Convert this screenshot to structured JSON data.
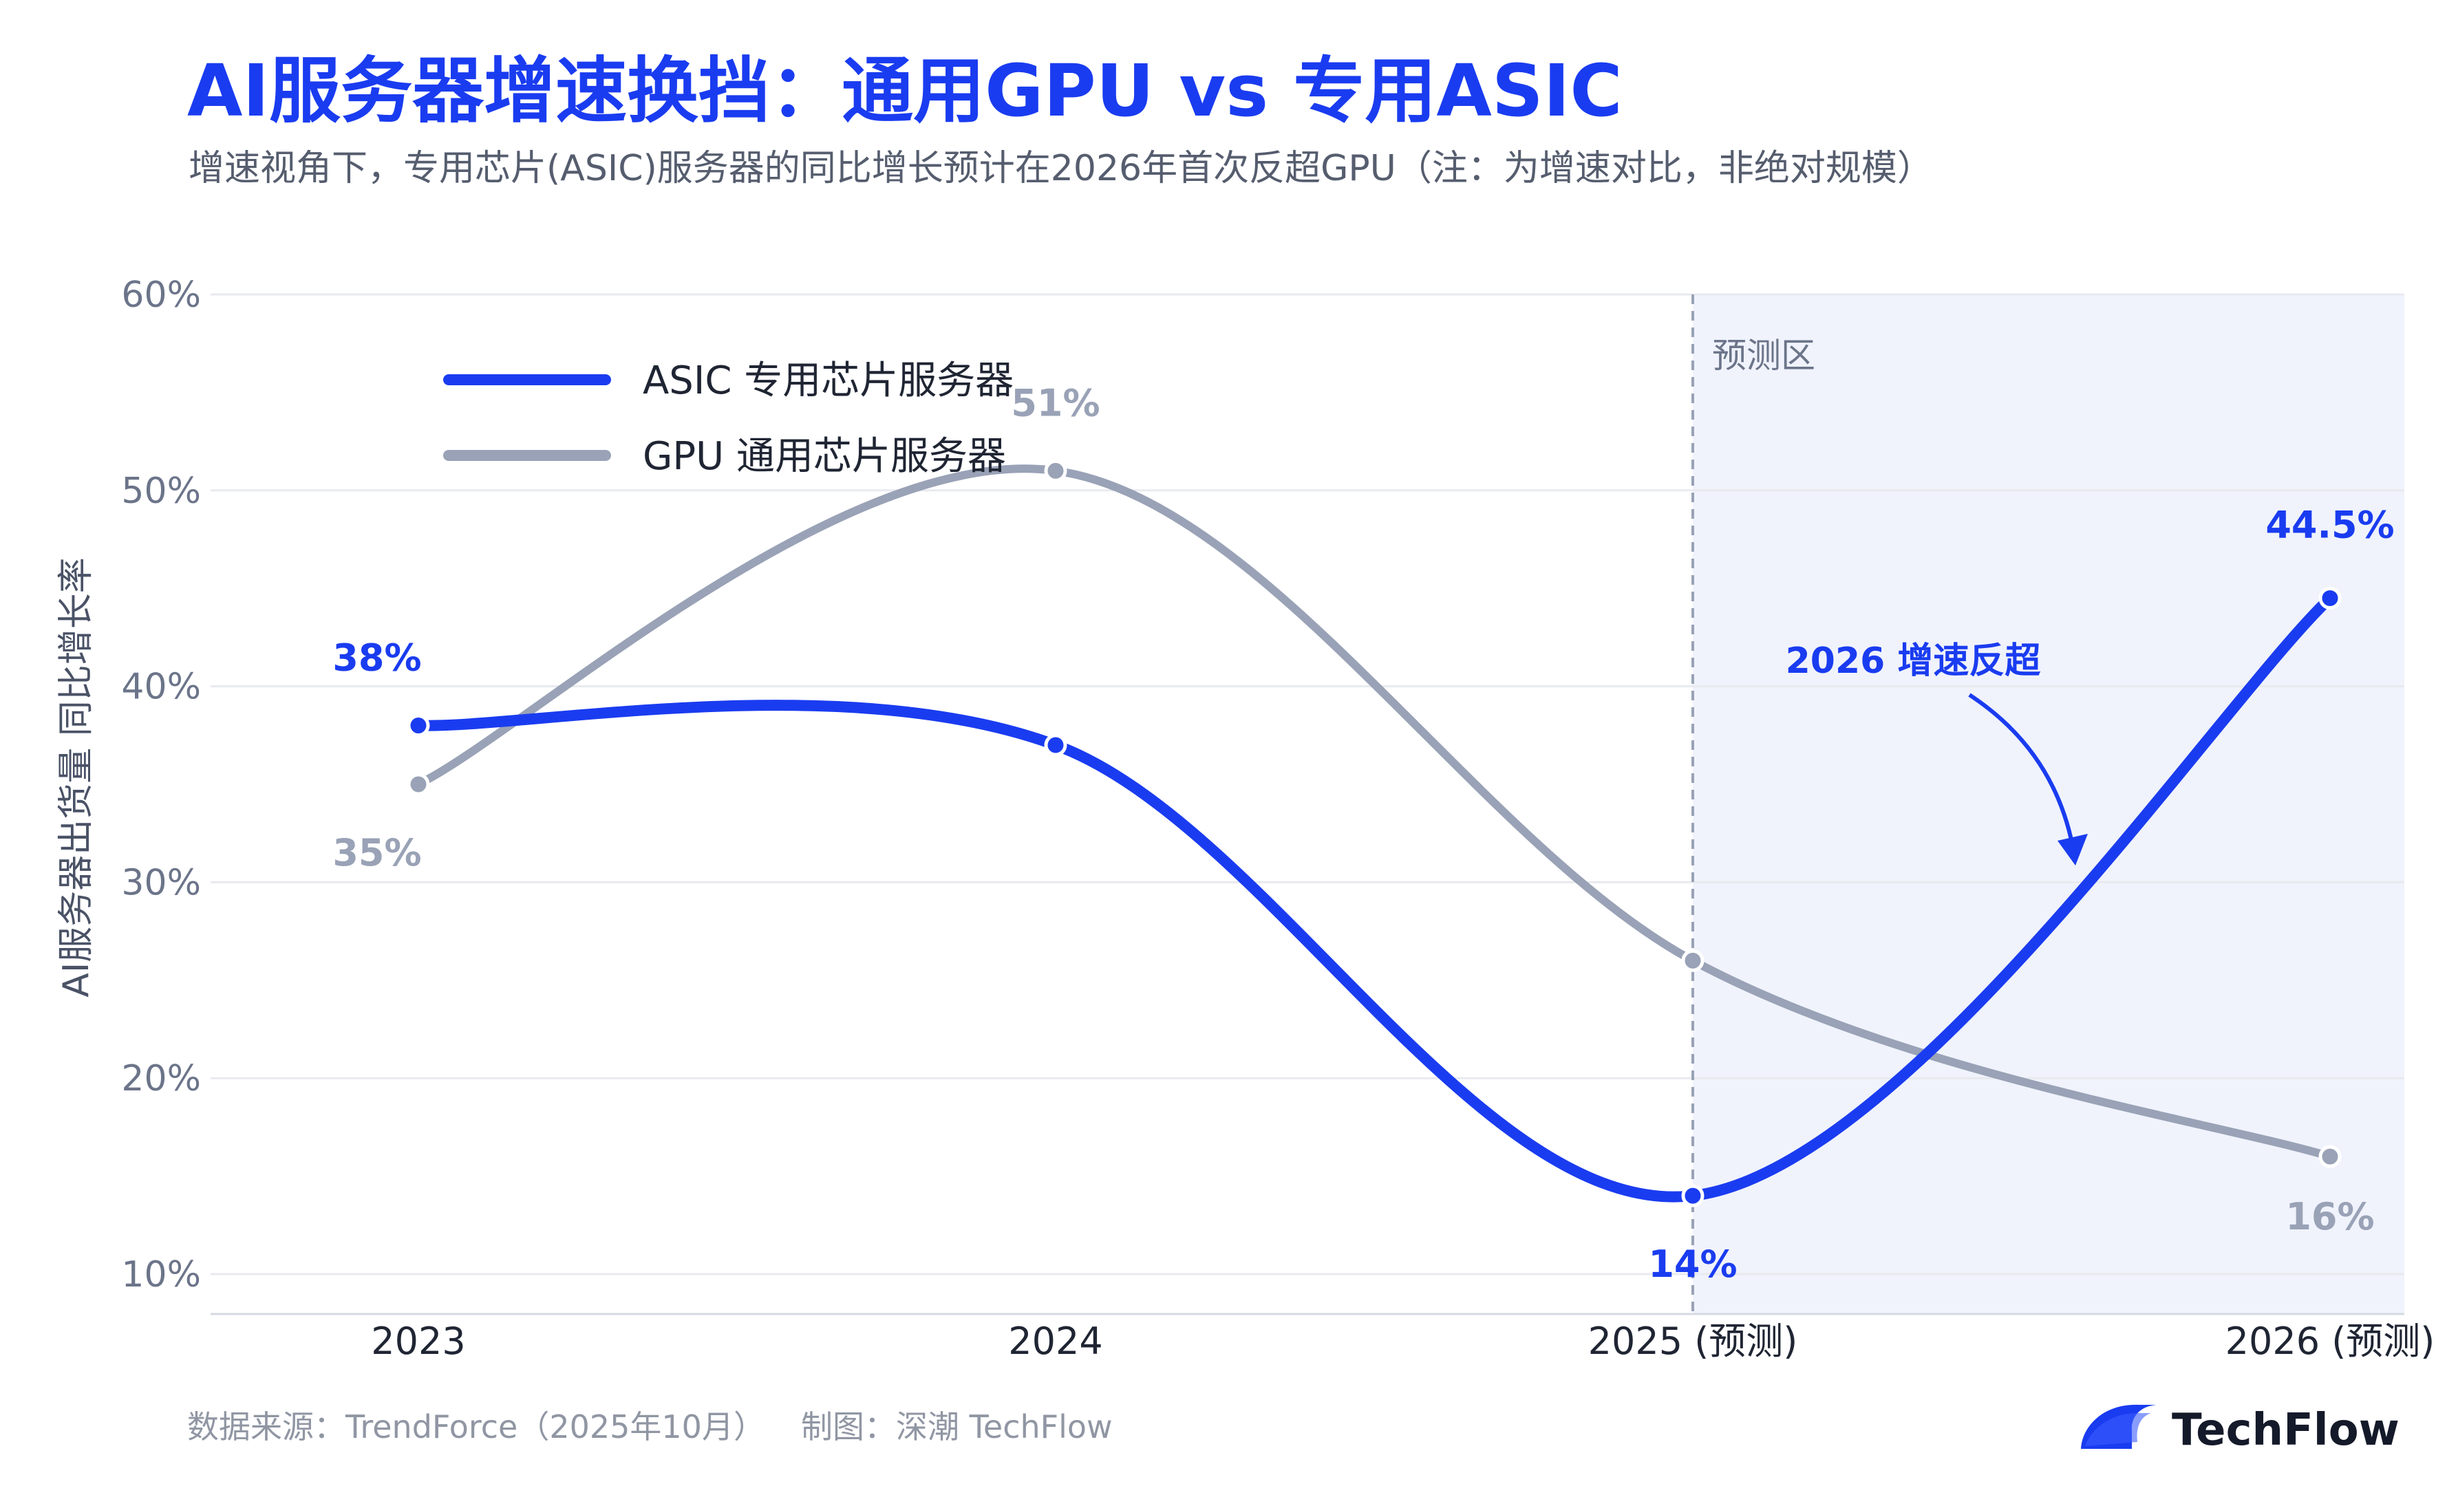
{
  "header": {
    "title": "AI服务器增速换挡：通用GPU vs 专用ASIC",
    "subtitle": "增速视角下，专用芯片(ASIC)服务器的同比增长预计在2026年首次反超GPU（注：为增速对比，非绝对规模）"
  },
  "footer": {
    "source": "数据来源：TrendForce（2025年10月）",
    "credit": "制图：深潮 TechFlow"
  },
  "brand": {
    "name": "TechFlow",
    "color": "#1a3cf0"
  },
  "colors": {
    "asic": "#1a3cf0",
    "gpu": "#99a2b6",
    "forecast_bg": "#f0f3fc",
    "grid": "#e8eaef",
    "tick": "#6b7489",
    "title": "#1a3cf0",
    "subtitle": "#555d6e"
  },
  "chart_data": {
    "type": "line",
    "x": [
      "2023",
      "2024",
      "2025 (预测)",
      "2026 (预测)"
    ],
    "ylabel": "AI服务器出货量 同比增长率",
    "ylim": [
      10,
      60
    ],
    "yticks": [
      "10%",
      "20%",
      "30%",
      "40%",
      "50%",
      "60%"
    ],
    "y_unit": "%",
    "grid": true,
    "legend_position": "top-left",
    "forecast_region": {
      "from": "2025 (预测)",
      "label": "预测区"
    },
    "series": [
      {
        "name": "ASIC 专用芯片服务器",
        "values": [
          38,
          37,
          14,
          44.5
        ],
        "point_labels": [
          "38%",
          "",
          "14%",
          "44.5%"
        ]
      },
      {
        "name": "GPU 通用芯片服务器",
        "values": [
          35,
          51,
          26,
          16
        ],
        "point_labels": [
          "35%",
          "51%",
          "",
          "16%"
        ]
      }
    ],
    "annotation": {
      "text": "2026 增速反超"
    }
  }
}
